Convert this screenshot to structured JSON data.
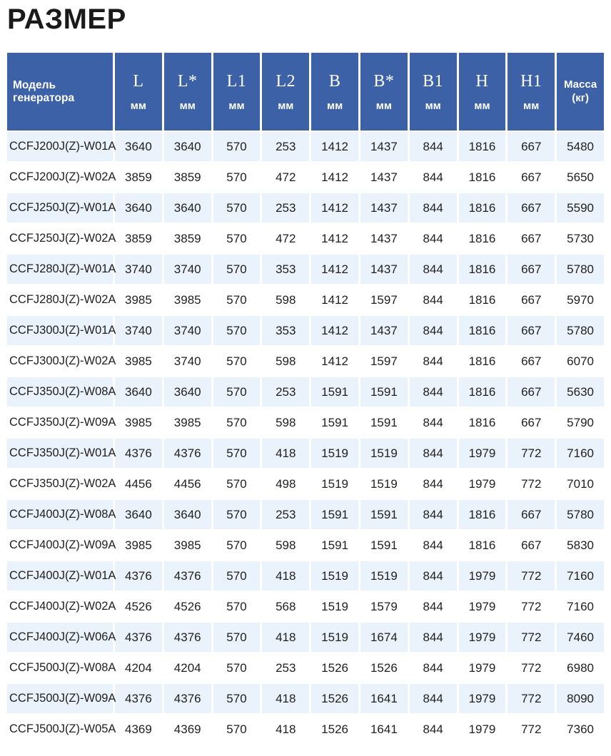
{
  "page": {
    "title": "РАЗМЕР"
  },
  "colors": {
    "header_bg": "#3c61a7",
    "header_text": "#ffffff",
    "row_alt_bg": "#eaf2fb",
    "row_bg": "#ffffff",
    "text_color": "#1f1f1f",
    "title_color": "#1a1a1a"
  },
  "table": {
    "columns": [
      {
        "label": "Модель генератора",
        "unit": "",
        "type": "model"
      },
      {
        "label": "L",
        "unit": "мм",
        "type": "dim"
      },
      {
        "label": "L*",
        "unit": "мм",
        "type": "dim"
      },
      {
        "label": "L1",
        "unit": "мм",
        "type": "dim"
      },
      {
        "label": "L2",
        "unit": "мм",
        "type": "dim"
      },
      {
        "label": "B",
        "unit": "мм",
        "type": "dim"
      },
      {
        "label": "B*",
        "unit": "мм",
        "type": "dim"
      },
      {
        "label": "B1",
        "unit": "мм",
        "type": "dim"
      },
      {
        "label": "H",
        "unit": "мм",
        "type": "dim"
      },
      {
        "label": "H1",
        "unit": "мм",
        "type": "dim"
      },
      {
        "label": "Масса",
        "unit": "(кг)",
        "type": "mass"
      }
    ],
    "rows": [
      {
        "model": "CCFJ200J(Z)-W01A",
        "values": [
          "3640",
          "3640",
          "570",
          "253",
          "1412",
          "1437",
          "844",
          "1816",
          "667",
          "5480"
        ]
      },
      {
        "model": "CCFJ200J(Z)-W02A",
        "values": [
          "3859",
          "3859",
          "570",
          "472",
          "1412",
          "1437",
          "844",
          "1816",
          "667",
          "5650"
        ]
      },
      {
        "model": "CCFJ250J(Z)-W01A",
        "values": [
          "3640",
          "3640",
          "570",
          "253",
          "1412",
          "1437",
          "844",
          "1816",
          "667",
          "5590"
        ]
      },
      {
        "model": "CCFJ250J(Z)-W02A",
        "values": [
          "3859",
          "3859",
          "570",
          "472",
          "1412",
          "1437",
          "844",
          "1816",
          "667",
          "5730"
        ]
      },
      {
        "model": "CCFJ280J(Z)-W01A",
        "values": [
          "3740",
          "3740",
          "570",
          "353",
          "1412",
          "1437",
          "844",
          "1816",
          "667",
          "5780"
        ]
      },
      {
        "model": "CCFJ280J(Z)-W02A",
        "values": [
          "3985",
          "3985",
          "570",
          "598",
          "1412",
          "1597",
          "844",
          "1816",
          "667",
          "5970"
        ]
      },
      {
        "model": "CCFJ300J(Z)-W01A",
        "values": [
          "3740",
          "3740",
          "570",
          "353",
          "1412",
          "1437",
          "844",
          "1816",
          "667",
          "5780"
        ]
      },
      {
        "model": "CCFJ300J(Z)-W02A",
        "values": [
          "3985",
          "3740",
          "570",
          "598",
          "1412",
          "1597",
          "844",
          "1816",
          "667",
          "6070"
        ]
      },
      {
        "model": "CCFJ350J(Z)-W08A",
        "values": [
          "3640",
          "3640",
          "570",
          "253",
          "1591",
          "1591",
          "844",
          "1816",
          "667",
          "5630"
        ]
      },
      {
        "model": "CCFJ350J(Z)-W09A",
        "values": [
          "3985",
          "3985",
          "570",
          "598",
          "1591",
          "1591",
          "844",
          "1816",
          "667",
          "5790"
        ]
      },
      {
        "model": "CCFJ350J(Z)-W01A",
        "values": [
          "4376",
          "4376",
          "570",
          "418",
          "1519",
          "1519",
          "844",
          "1979",
          "772",
          "7160"
        ]
      },
      {
        "model": "CCFJ350J(Z)-W02A",
        "values": [
          "4456",
          "4456",
          "570",
          "498",
          "1519",
          "1519",
          "844",
          "1979",
          "772",
          "7010"
        ]
      },
      {
        "model": "CCFJ400J(Z)-W08A",
        "values": [
          "3640",
          "3640",
          "570",
          "253",
          "1591",
          "1591",
          "844",
          "1816",
          "667",
          "5780"
        ]
      },
      {
        "model": "CCFJ400J(Z)-W09A",
        "values": [
          "3985",
          "3985",
          "570",
          "598",
          "1591",
          "1591",
          "844",
          "1816",
          "667",
          "5830"
        ]
      },
      {
        "model": "CCFJ400J(Z)-W01A",
        "values": [
          "4376",
          "4376",
          "570",
          "418",
          "1519",
          "1519",
          "844",
          "1979",
          "772",
          "7160"
        ]
      },
      {
        "model": "CCFJ400J(Z)-W02A",
        "values": [
          "4526",
          "4526",
          "570",
          "568",
          "1519",
          "1579",
          "844",
          "1979",
          "772",
          "7160"
        ]
      },
      {
        "model": "CCFJ400J(Z)-W06A",
        "values": [
          "4376",
          "4376",
          "570",
          "418",
          "1519",
          "1674",
          "844",
          "1979",
          "772",
          "7460"
        ]
      },
      {
        "model": "CCFJ500J(Z)-W08A",
        "values": [
          "4204",
          "4204",
          "570",
          "253",
          "1526",
          "1526",
          "844",
          "1979",
          "772",
          "6980"
        ]
      },
      {
        "model": "CCFJ500J(Z)-W09A",
        "values": [
          "4376",
          "4376",
          "570",
          "418",
          "1526",
          "1641",
          "844",
          "1979",
          "772",
          "8090"
        ]
      },
      {
        "model": "CCFJ500J(Z)-W05A",
        "values": [
          "4369",
          "4369",
          "570",
          "418",
          "1526",
          "1641",
          "844",
          "1979",
          "772",
          "7360"
        ]
      }
    ]
  }
}
